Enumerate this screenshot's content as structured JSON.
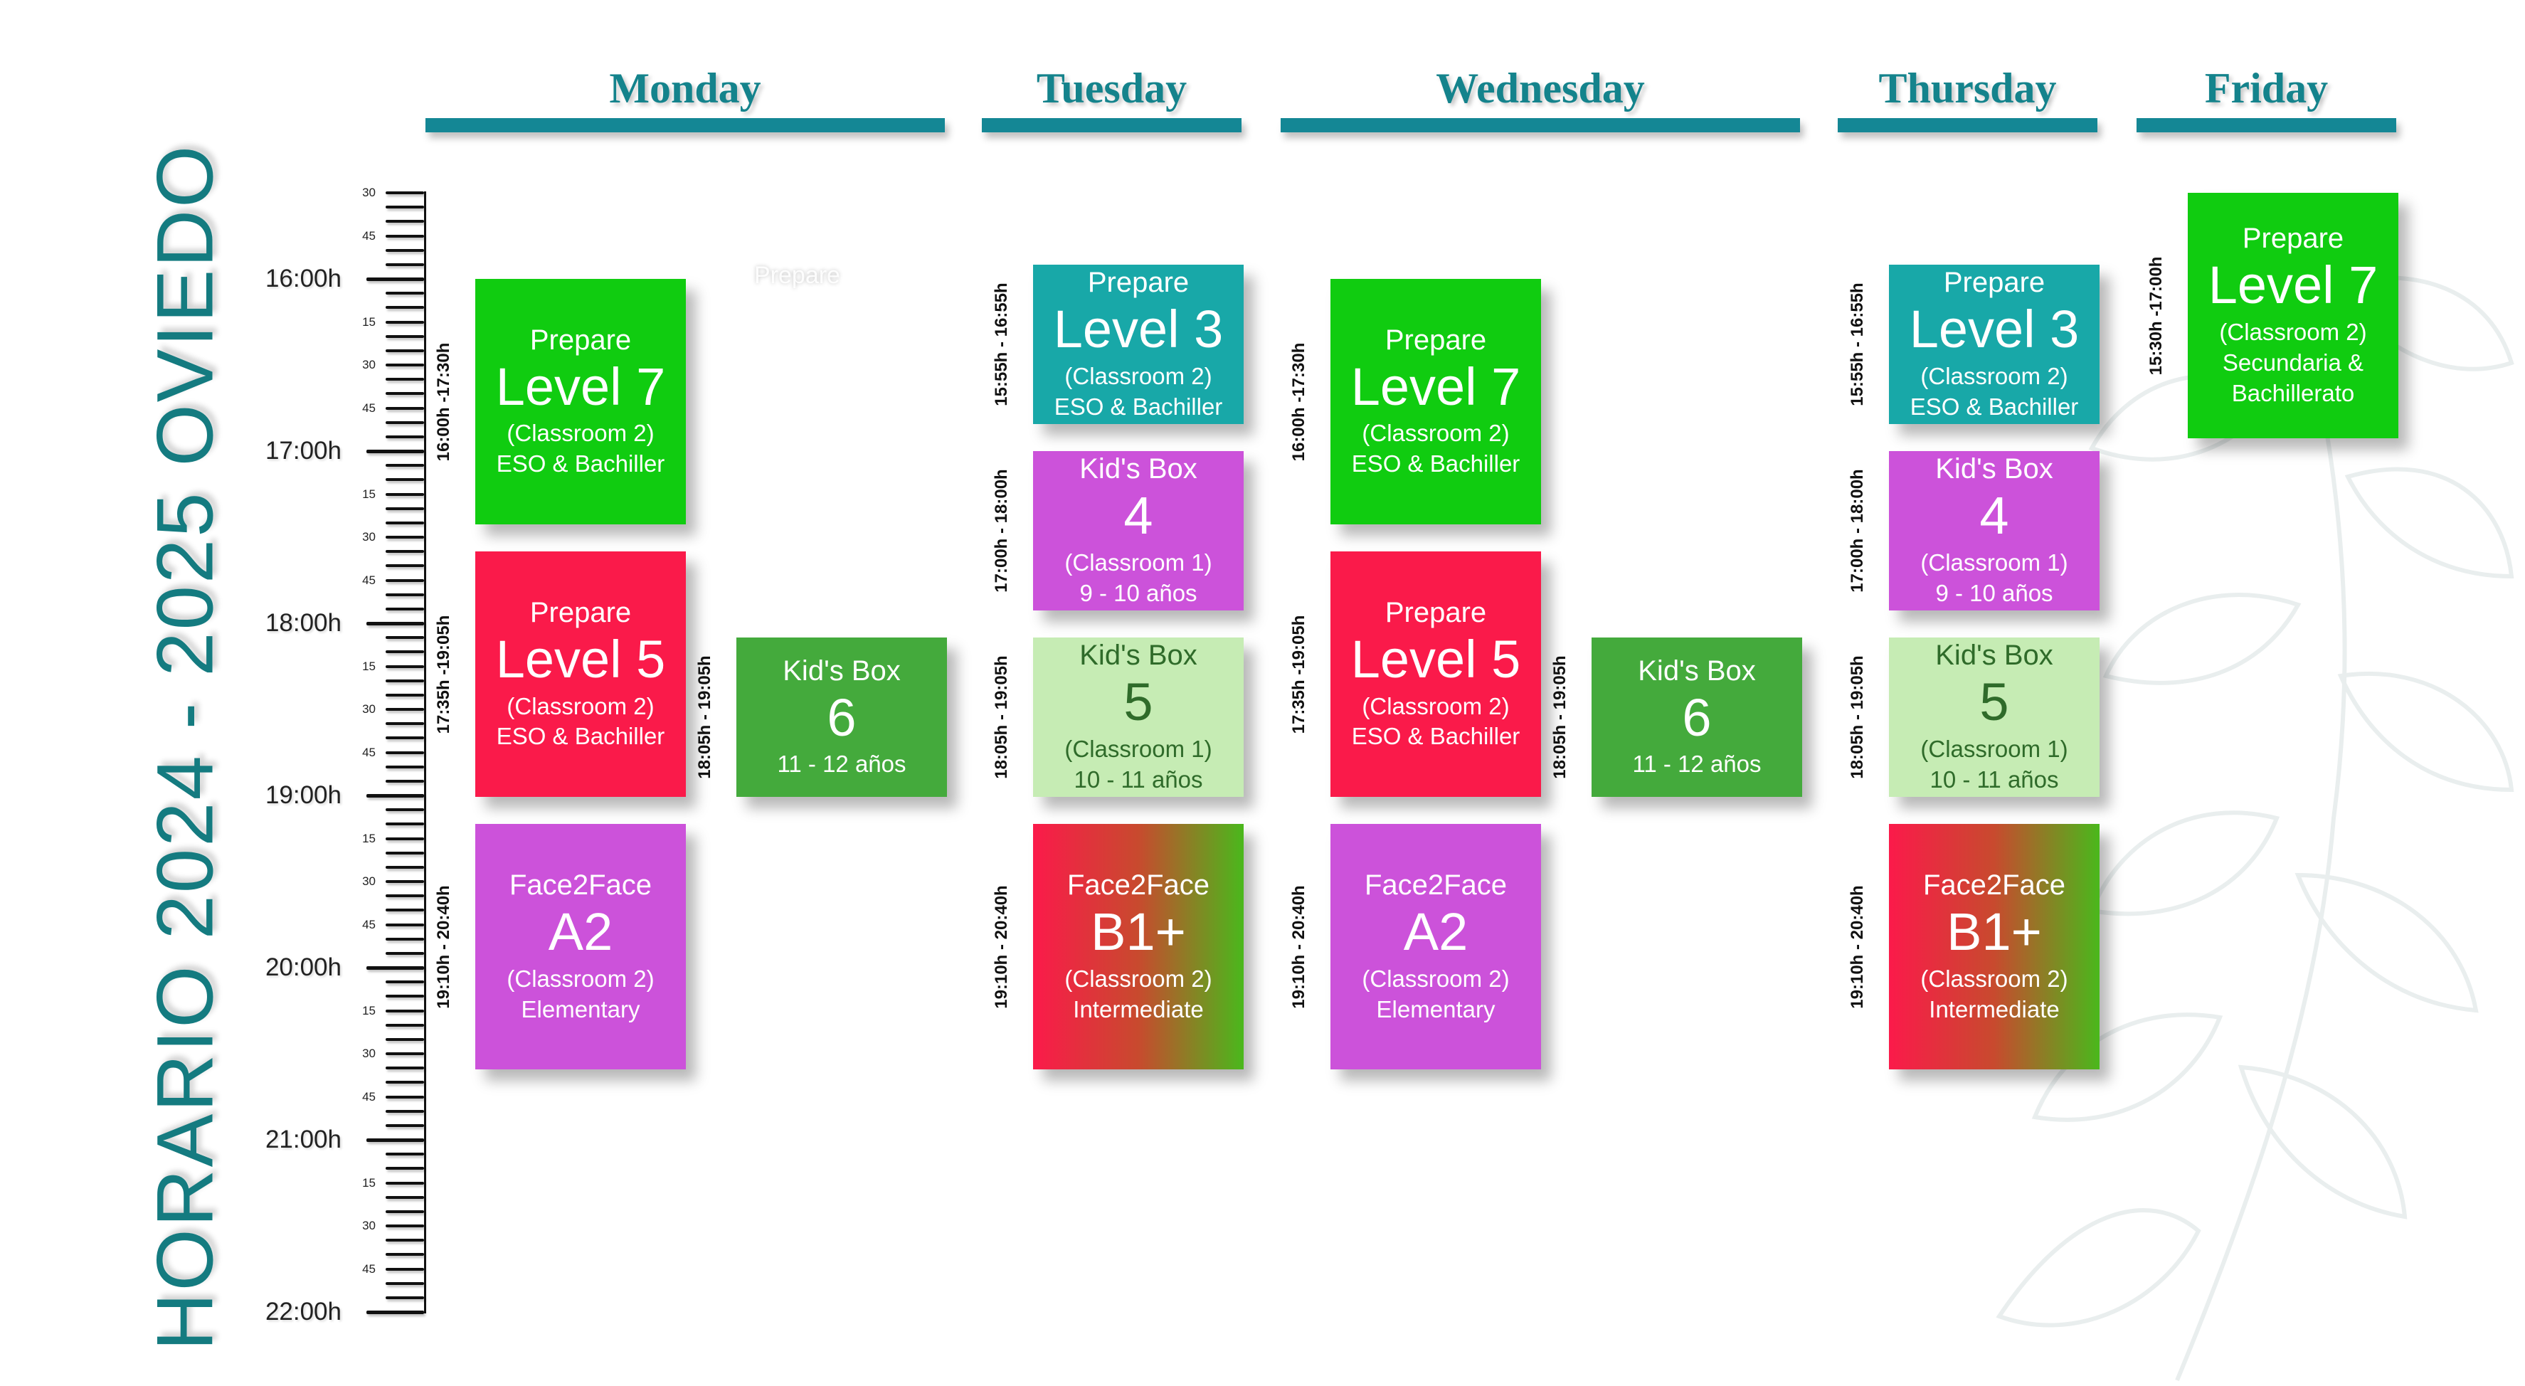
{
  "title": "HORARIO  2024 - 2025 OVIEDO",
  "days": [
    "Monday",
    "Tuesday",
    "Wednesday",
    "Thursday",
    "Friday"
  ],
  "hours": [
    "16:00h",
    "17:00h",
    "18:00h",
    "19:00h",
    "20:00h",
    "21:00h",
    "22:00h"
  ],
  "minute_ticks": [
    "15",
    "30",
    "45"
  ],
  "top_ticks": [
    "30",
    "45"
  ],
  "colors": {
    "accent": "#148795",
    "green": "#10cc10",
    "red": "#fa1a4a",
    "purple": "#cc52da",
    "teal": "#18a8a8",
    "dark_green": "#44aa3c",
    "light_green": "#c6ecb4",
    "gradient_from": "#fb1a4a",
    "gradient_to": "#4ab81c"
  },
  "faint_text": "Prepare",
  "blocks": [
    {
      "day": "Monday",
      "col": 0,
      "time": "16:00h -17:30h",
      "start": 16.0,
      "end": 17.5,
      "color": "green",
      "l1": "Prepare",
      "l2": "Level 7",
      "l3": "(Classroom 2)",
      "l4": "ESO & Bachiller"
    },
    {
      "day": "Monday",
      "col": 0,
      "time": "17:35h -19:05h",
      "start": 17.583,
      "end": 19.083,
      "color": "red",
      "l1": "Prepare",
      "l2": "Level 5",
      "l3": "(Classroom 2)",
      "l4": "ESO & Bachiller"
    },
    {
      "day": "Monday",
      "col": 0,
      "time": "19:10h - 20:40h",
      "start": 19.167,
      "end": 20.667,
      "color": "purple",
      "l1": "Face2Face",
      "l2": "A2",
      "l3": "(Classroom 2)",
      "l4": "Elementary"
    },
    {
      "day": "Monday",
      "col": 1,
      "time": "18:05h - 19:05h",
      "start": 18.083,
      "end": 19.083,
      "color": "dark_green",
      "l1": "Kid's Box",
      "l2": "6",
      "l3": "11 - 12 años",
      "l4": ""
    },
    {
      "day": "Tuesday",
      "col": 0,
      "time": "15:55h - 16:55h",
      "start": 15.917,
      "end": 16.917,
      "color": "teal",
      "l1": "Prepare",
      "l2": "Level 3",
      "l3": "(Classroom 2)",
      "l4": "ESO & Bachiller"
    },
    {
      "day": "Tuesday",
      "col": 0,
      "time": "17:00h - 18:00h",
      "start": 17.0,
      "end": 18.0,
      "color": "purple",
      "l1": "Kid's Box",
      "l2": "4",
      "l3": "(Classroom 1)",
      "l4": "9 - 10 años"
    },
    {
      "day": "Tuesday",
      "col": 0,
      "time": "18:05h - 19:05h",
      "start": 18.083,
      "end": 19.083,
      "color": "light_green",
      "l1": "Kid's Box",
      "l2": "5",
      "l3": "(Classroom 1)",
      "l4": "10 - 11 años"
    },
    {
      "day": "Tuesday",
      "col": 0,
      "time": "19:10h - 20:40h",
      "start": 19.167,
      "end": 20.667,
      "color": "gradient",
      "l1": "Face2Face",
      "l2": "B1+",
      "l3": "(Classroom 2)",
      "l4": "Intermediate"
    },
    {
      "day": "Wednesday",
      "col": 0,
      "time": "16:00h -17:30h",
      "start": 16.0,
      "end": 17.5,
      "color": "green",
      "l1": "Prepare",
      "l2": "Level 7",
      "l3": "(Classroom 2)",
      "l4": "ESO & Bachiller"
    },
    {
      "day": "Wednesday",
      "col": 0,
      "time": "17:35h -19:05h",
      "start": 17.583,
      "end": 19.083,
      "color": "red",
      "l1": "Prepare",
      "l2": "Level 5",
      "l3": "(Classroom 2)",
      "l4": "ESO & Bachiller"
    },
    {
      "day": "Wednesday",
      "col": 0,
      "time": "19:10h - 20:40h",
      "start": 19.167,
      "end": 20.667,
      "color": "purple",
      "l1": "Face2Face",
      "l2": "A2",
      "l3": "(Classroom 2)",
      "l4": "Elementary"
    },
    {
      "day": "Wednesday",
      "col": 1,
      "time": "18:05h - 19:05h",
      "start": 18.083,
      "end": 19.083,
      "color": "dark_green",
      "l1": "Kid's Box",
      "l2": "6",
      "l3": "11 - 12 años",
      "l4": ""
    },
    {
      "day": "Thursday",
      "col": 0,
      "time": "15:55h - 16:55h",
      "start": 15.917,
      "end": 16.917,
      "color": "teal",
      "l1": "Prepare",
      "l2": "Level 3",
      "l3": "(Classroom 2)",
      "l4": "ESO & Bachiller"
    },
    {
      "day": "Thursday",
      "col": 0,
      "time": "17:00h - 18:00h",
      "start": 17.0,
      "end": 18.0,
      "color": "purple",
      "l1": "Kid's Box",
      "l2": "4",
      "l3": "(Classroom 1)",
      "l4": "9 - 10 años"
    },
    {
      "day": "Thursday",
      "col": 0,
      "time": "18:05h - 19:05h",
      "start": 18.083,
      "end": 19.083,
      "color": "light_green",
      "l1": "Kid's Box",
      "l2": "5",
      "l3": "(Classroom 1)",
      "l4": "10 - 11 años"
    },
    {
      "day": "Thursday",
      "col": 0,
      "time": "19:10h - 20:40h",
      "start": 19.167,
      "end": 20.667,
      "color": "gradient",
      "l1": "Face2Face",
      "l2": "B1+",
      "l3": "(Classroom 2)",
      "l4": "Intermediate"
    },
    {
      "day": "Friday",
      "col": 0,
      "time": "15:30h -17:00h",
      "start": 15.5,
      "end": 17.0,
      "color": "green",
      "l1": "Prepare",
      "l2": "Level 7",
      "l3": "(Classroom 2)",
      "l4": "Secundaria &",
      "l5": "Bachillerato"
    }
  ]
}
